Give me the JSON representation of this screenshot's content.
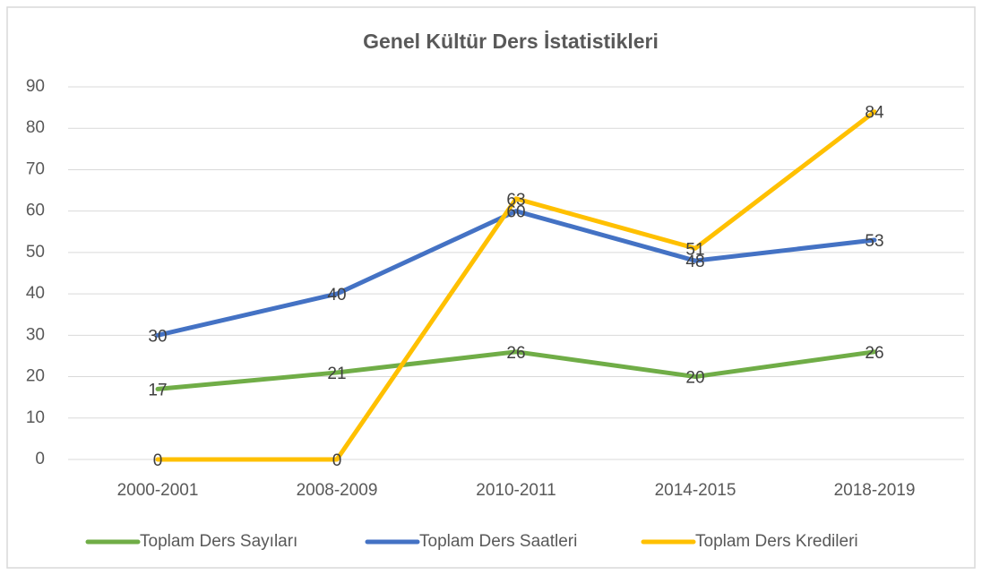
{
  "chart_data": {
    "type": "line",
    "title": "Genel Kültür Ders İstatistikleri",
    "categories": [
      "2000-2001",
      "2008-2009",
      "2010-2011",
      "2014-2015",
      "2018-2019"
    ],
    "series": [
      {
        "name": "Toplam Ders Sayıları",
        "color": "#70ad47",
        "values": [
          17,
          21,
          26,
          20,
          26
        ]
      },
      {
        "name": "Toplam Ders Saatleri",
        "color": "#4472c4",
        "values": [
          30,
          40,
          60,
          48,
          53
        ]
      },
      {
        "name": "Toplam Ders Kredileri",
        "color": "#ffc000",
        "values": [
          0,
          0,
          63,
          51,
          84
        ]
      }
    ],
    "ylim": [
      0,
      90
    ],
    "yticks": [
      0,
      10,
      20,
      30,
      40,
      50,
      60,
      70,
      80,
      90
    ],
    "grid": true,
    "legend": "bottom"
  }
}
